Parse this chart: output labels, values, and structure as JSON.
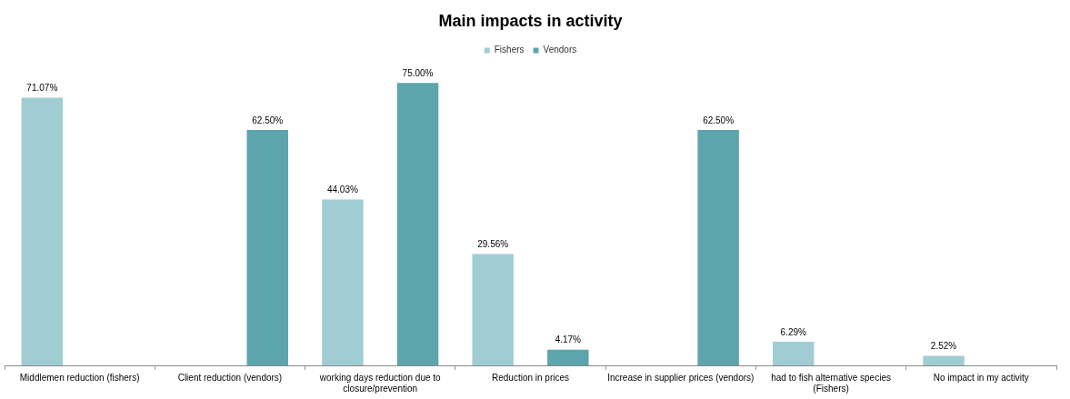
{
  "chart_data": {
    "type": "bar",
    "title": "Main impacts in activity",
    "categories": [
      "Middlemen reduction (fishers)",
      "Client reduction (vendors)",
      "working days reduction due to closure/prevention",
      "Reduction in prices",
      "Increase in supplier prices (vendors)",
      "had to fish alternative species (Fishers)",
      "No impact in my activity"
    ],
    "series": [
      {
        "name": "Fishers",
        "color": "#a0cdd3",
        "values": [
          71.07,
          null,
          44.03,
          29.56,
          null,
          6.29,
          2.52
        ],
        "value_labels": [
          "71.07%",
          null,
          "44.03%",
          "29.56%",
          null,
          "6.29%",
          "2.52%"
        ]
      },
      {
        "name": "Vendors",
        "color": "#5ca5ac",
        "values": [
          null,
          62.5,
          75.0,
          4.17,
          62.5,
          null,
          null
        ],
        "value_labels": [
          null,
          "62.50%",
          "75.00%",
          "4.17%",
          "62.50%",
          null,
          null
        ]
      }
    ],
    "legend": "top",
    "grid": false,
    "tick_labels": "x"
  }
}
